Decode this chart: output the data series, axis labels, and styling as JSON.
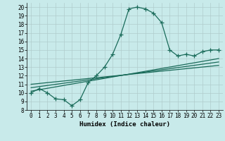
{
  "xlabel": "Humidex (Indice chaleur)",
  "bg_color": "#c8eaea",
  "grid_color": "#b0cccc",
  "line_color": "#1a6b5a",
  "xlim": [
    -0.5,
    23.5
  ],
  "ylim": [
    8,
    20.5
  ],
  "xticks": [
    0,
    1,
    2,
    3,
    4,
    5,
    6,
    7,
    8,
    9,
    10,
    11,
    12,
    13,
    14,
    15,
    16,
    17,
    18,
    19,
    20,
    21,
    22,
    23
  ],
  "yticks": [
    8,
    9,
    10,
    11,
    12,
    13,
    14,
    15,
    16,
    17,
    18,
    19,
    20
  ],
  "main_x": [
    0,
    1,
    2,
    3,
    4,
    5,
    6,
    7,
    8,
    9,
    10,
    11,
    12,
    13,
    14,
    15,
    16,
    17,
    18,
    19,
    20,
    21,
    22,
    23
  ],
  "main_y": [
    10.0,
    10.5,
    10.0,
    9.3,
    9.2,
    8.5,
    9.2,
    11.2,
    12.0,
    13.0,
    14.5,
    16.8,
    19.8,
    20.0,
    19.8,
    19.3,
    18.2,
    15.0,
    14.3,
    14.5,
    14.3,
    14.8,
    15.0,
    15.0
  ],
  "line1_x": [
    0,
    23
  ],
  "line1_y": [
    10.2,
    14.0
  ],
  "line2_x": [
    0,
    23
  ],
  "line2_y": [
    10.6,
    13.6
  ],
  "line3_x": [
    0,
    23
  ],
  "line3_y": [
    11.0,
    13.2
  ],
  "marker": "+",
  "markersize": 4,
  "linewidth": 0.9,
  "tick_fontsize": 5.5,
  "xlabel_fontsize": 6.5
}
